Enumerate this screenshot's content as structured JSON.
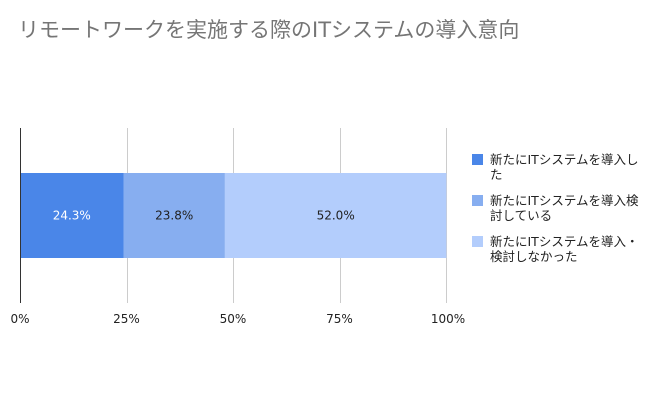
{
  "title": "リモートワークを実施する際のITシステムの導入意向",
  "chart_data": {
    "type": "bar",
    "orientation": "horizontal",
    "stacked": true,
    "categories": [
      ""
    ],
    "series": [
      {
        "name": "新たにITシステムを導入した",
        "values": [
          24.3
        ],
        "label": "24.3%",
        "color": "#4a86e8",
        "label_color": "#ffffff"
      },
      {
        "name": "新たにITシステムを導入検討している",
        "values": [
          23.8
        ],
        "label": "23.8%",
        "color": "#87aef0",
        "label_color": "#222222"
      },
      {
        "name": "新たにITシステムを導入・検討しなかった",
        "values": [
          52.0
        ],
        "label": "52.0%",
        "color": "#b3cdfc",
        "label_color": "#222222"
      }
    ],
    "xlim": [
      0,
      100
    ],
    "x_ticks": [
      {
        "value": 0,
        "label": "0%"
      },
      {
        "value": 25,
        "label": "25%"
      },
      {
        "value": 50,
        "label": "50%"
      },
      {
        "value": 75,
        "label": "75%"
      },
      {
        "value": 100,
        "label": "100%"
      }
    ],
    "grid": true,
    "legend_position": "right"
  }
}
